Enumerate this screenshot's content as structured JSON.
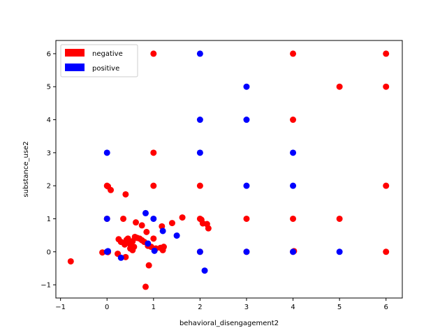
{
  "chart_data": {
    "type": "scatter",
    "title": "",
    "xlabel": "behavioral_disengagement2",
    "ylabel": "substance_use2",
    "xlim": [
      -1.1,
      6.35
    ],
    "ylim": [
      -1.4,
      6.4
    ],
    "xticks": [
      -1,
      0,
      1,
      2,
      3,
      4,
      5,
      6
    ],
    "yticks": [
      -1,
      0,
      1,
      2,
      3,
      4,
      5,
      6
    ],
    "grid": false,
    "legend_position": "top-left",
    "series": [
      {
        "name": "negative",
        "color": "#ff0000",
        "points": [
          [
            1,
            6
          ],
          [
            4,
            6
          ],
          [
            6,
            6
          ],
          [
            5,
            5
          ],
          [
            6,
            5
          ],
          [
            4,
            4
          ],
          [
            1,
            3
          ],
          [
            0,
            2
          ],
          [
            0.02,
            1.98
          ],
          [
            0.08,
            1.87
          ],
          [
            1,
            2
          ],
          [
            2,
            2
          ],
          [
            6,
            2
          ],
          [
            0.4,
            1.74
          ],
          [
            0,
            1
          ],
          [
            0.35,
            1.0
          ],
          [
            0.62,
            0.89
          ],
          [
            0.75,
            0.8
          ],
          [
            1.18,
            0.77
          ],
          [
            1.4,
            0.87
          ],
          [
            1.62,
            1.04
          ],
          [
            2,
            1
          ],
          [
            2.03,
            0.97
          ],
          [
            2.06,
            0.86
          ],
          [
            2.15,
            0.84
          ],
          [
            2.18,
            0.71
          ],
          [
            3,
            1
          ],
          [
            4,
            1
          ],
          [
            5,
            1
          ],
          [
            0.85,
            0.6
          ],
          [
            0.25,
            0.38
          ],
          [
            0.3,
            0.3
          ],
          [
            0.38,
            0.22
          ],
          [
            0.42,
            0.36
          ],
          [
            0.45,
            0.4
          ],
          [
            0.48,
            0.25
          ],
          [
            0.55,
            0.32
          ],
          [
            0.6,
            0.45
          ],
          [
            0.65,
            0.42
          ],
          [
            0.7,
            0.4
          ],
          [
            0.75,
            0.35
          ],
          [
            0.8,
            0.3
          ],
          [
            0.88,
            0.18
          ],
          [
            0.95,
            0.15
          ],
          [
            1.0,
            0.4
          ],
          [
            1.05,
            0.1
          ],
          [
            1.15,
            0.12
          ],
          [
            1.2,
            0.05
          ],
          [
            1.22,
            0.15
          ],
          [
            0.5,
            0.1
          ],
          [
            0.55,
            0.05
          ],
          [
            0.58,
            0.15
          ],
          [
            -0.1,
            -0.02
          ],
          [
            0.02,
            -0.01
          ],
          [
            0.23,
            -0.06
          ],
          [
            0.4,
            -0.16
          ],
          [
            0.9,
            -0.41
          ],
          [
            0.83,
            -1.06
          ],
          [
            -0.78,
            -0.29
          ],
          [
            2,
            0
          ],
          [
            3,
            0
          ],
          [
            4,
            0
          ],
          [
            4.02,
            0.02
          ],
          [
            6,
            0
          ]
        ]
      },
      {
        "name": "positive",
        "color": "#0000ff",
        "points": [
          [
            2,
            6
          ],
          [
            3,
            5
          ],
          [
            2,
            4
          ],
          [
            3,
            4
          ],
          [
            0,
            3
          ],
          [
            2,
            3
          ],
          [
            4,
            3
          ],
          [
            3,
            2
          ],
          [
            4,
            2
          ],
          [
            0,
            1
          ],
          [
            0.83,
            1.17
          ],
          [
            1.0,
            1.0
          ],
          [
            1.2,
            0.63
          ],
          [
            1.5,
            0.49
          ],
          [
            0.88,
            0.25
          ],
          [
            1.02,
            0.03
          ],
          [
            0,
            0
          ],
          [
            0.02,
            0.02
          ],
          [
            0.3,
            -0.18
          ],
          [
            2,
            0
          ],
          [
            3,
            0
          ],
          [
            4,
            0
          ],
          [
            5,
            0
          ],
          [
            2.1,
            -0.57
          ]
        ]
      }
    ]
  }
}
